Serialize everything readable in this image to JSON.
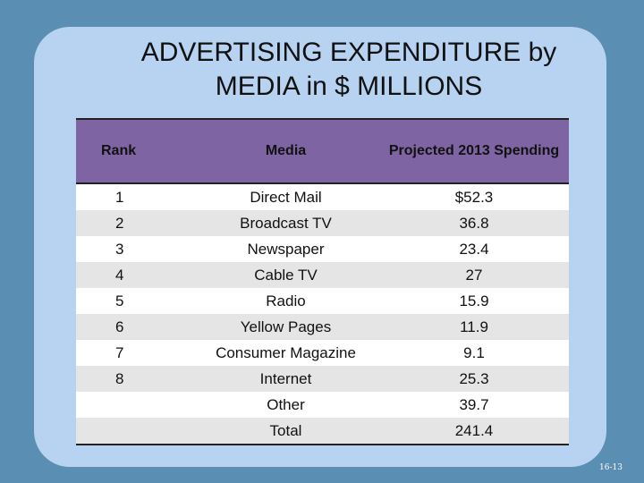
{
  "slide": {
    "title_line1": "ADVERTISING EXPENDITURE by",
    "title_line2": "MEDIA in $ MILLIONS",
    "slide_number": "16-13"
  },
  "table": {
    "headers": {
      "rank": "Rank",
      "media": "Media",
      "spending": "Projected 2013 Spending"
    },
    "rows": [
      {
        "rank": "1",
        "media": "Direct Mail",
        "spending": "$52.3"
      },
      {
        "rank": "2",
        "media": "Broadcast TV",
        "spending": "36.8"
      },
      {
        "rank": "3",
        "media": "Newspaper",
        "spending": "23.4"
      },
      {
        "rank": "4",
        "media": "Cable TV",
        "spending": "27"
      },
      {
        "rank": "5",
        "media": "Radio",
        "spending": "15.9"
      },
      {
        "rank": "6",
        "media": "Yellow Pages",
        "spending": "11.9"
      },
      {
        "rank": "7",
        "media": "Consumer Magazine",
        "spending": "9.1"
      },
      {
        "rank": "8",
        "media": "Internet",
        "spending": "25.3"
      },
      {
        "rank": "",
        "media": "Other",
        "spending": "39.7"
      },
      {
        "rank": "",
        "media": "Total",
        "spending": "241.4"
      }
    ]
  }
}
